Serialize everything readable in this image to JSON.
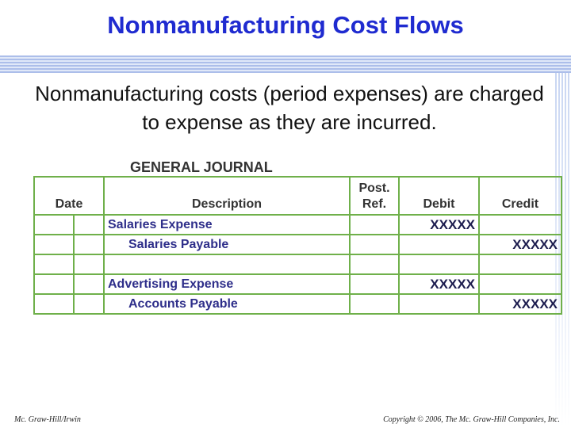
{
  "header": {
    "title": "Nonmanufacturing Cost Flows"
  },
  "body": {
    "text": "Nonmanufacturing costs (period expenses) are charged to expense as they are incurred."
  },
  "journal": {
    "title": "GENERAL JOURNAL",
    "columns": [
      "Date",
      "Description",
      "Post. Ref.",
      "Debit",
      "Credit"
    ],
    "rows": [
      {
        "description": "Salaries Expense",
        "debit": "XXXXX"
      },
      {
        "description": "Salaries Payable",
        "credit": "XXXXX"
      },
      {},
      {
        "description": "Advertising Expense",
        "debit": "XXXXX"
      },
      {
        "description": "Accounts Payable",
        "credit": "XXXXX"
      }
    ]
  },
  "footer": {
    "left": "Mc. Graw-Hill/Irwin",
    "right": "Copyright © 2006, The Mc. Graw-Hill Companies, Inc."
  }
}
